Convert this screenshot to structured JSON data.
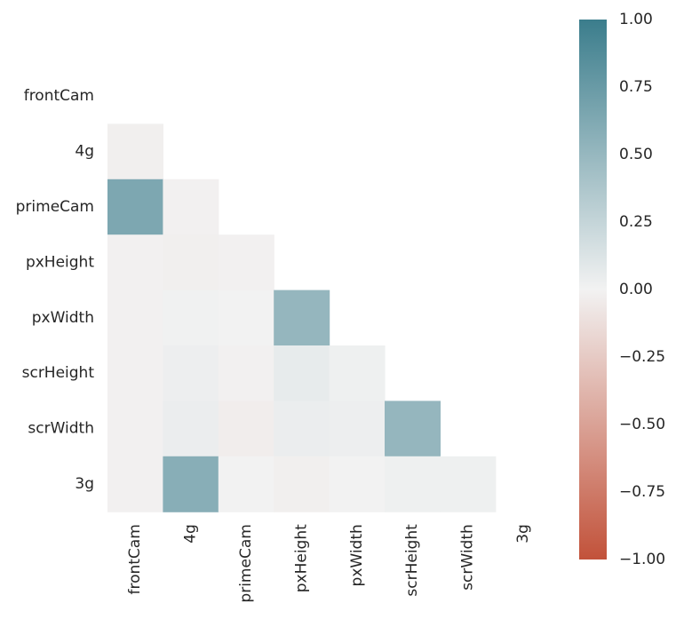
{
  "chart_data": {
    "type": "heatmap",
    "mask": "upper-triangle",
    "title": "",
    "xlabel": "",
    "ylabel": "",
    "x_categories": [
      "frontCam",
      "4g",
      "primeCam",
      "pxHeight",
      "pxWidth",
      "scrHeight",
      "scrWidth",
      "3g"
    ],
    "y_categories": [
      "frontCam",
      "4g",
      "primeCam",
      "pxHeight",
      "pxWidth",
      "scrHeight",
      "scrWidth",
      "3g"
    ],
    "values": [
      [
        null,
        null,
        null,
        null,
        null,
        null,
        null,
        null
      ],
      [
        -0.02,
        null,
        null,
        null,
        null,
        null,
        null,
        null
      ],
      [
        0.64,
        -0.01,
        null,
        null,
        null,
        null,
        null,
        null
      ],
      [
        -0.01,
        -0.02,
        -0.01,
        null,
        null,
        null,
        null,
        null
      ],
      [
        -0.01,
        0.01,
        0.0,
        0.51,
        null,
        null,
        null,
        null
      ],
      [
        -0.01,
        0.03,
        -0.01,
        0.06,
        0.02,
        null,
        null,
        null
      ],
      [
        -0.01,
        0.04,
        -0.03,
        0.04,
        0.03,
        0.51,
        null,
        null
      ],
      [
        -0.01,
        0.58,
        0.0,
        -0.02,
        0.0,
        0.02,
        0.02,
        null
      ]
    ],
    "colorbar": {
      "vmin": -1.0,
      "vmax": 1.0,
      "ticks": [
        "1.00",
        "0.75",
        "0.50",
        "0.25",
        "0.00",
        "−0.25",
        "−0.50",
        "−0.75",
        "−1.00"
      ],
      "tick_values": [
        1.0,
        0.75,
        0.5,
        0.25,
        0.0,
        -0.25,
        -0.5,
        -0.75,
        -1.0
      ],
      "colors": {
        "negative": "#c2523a",
        "center": "#f2f2f2",
        "positive": "#3b7d8c"
      }
    }
  }
}
